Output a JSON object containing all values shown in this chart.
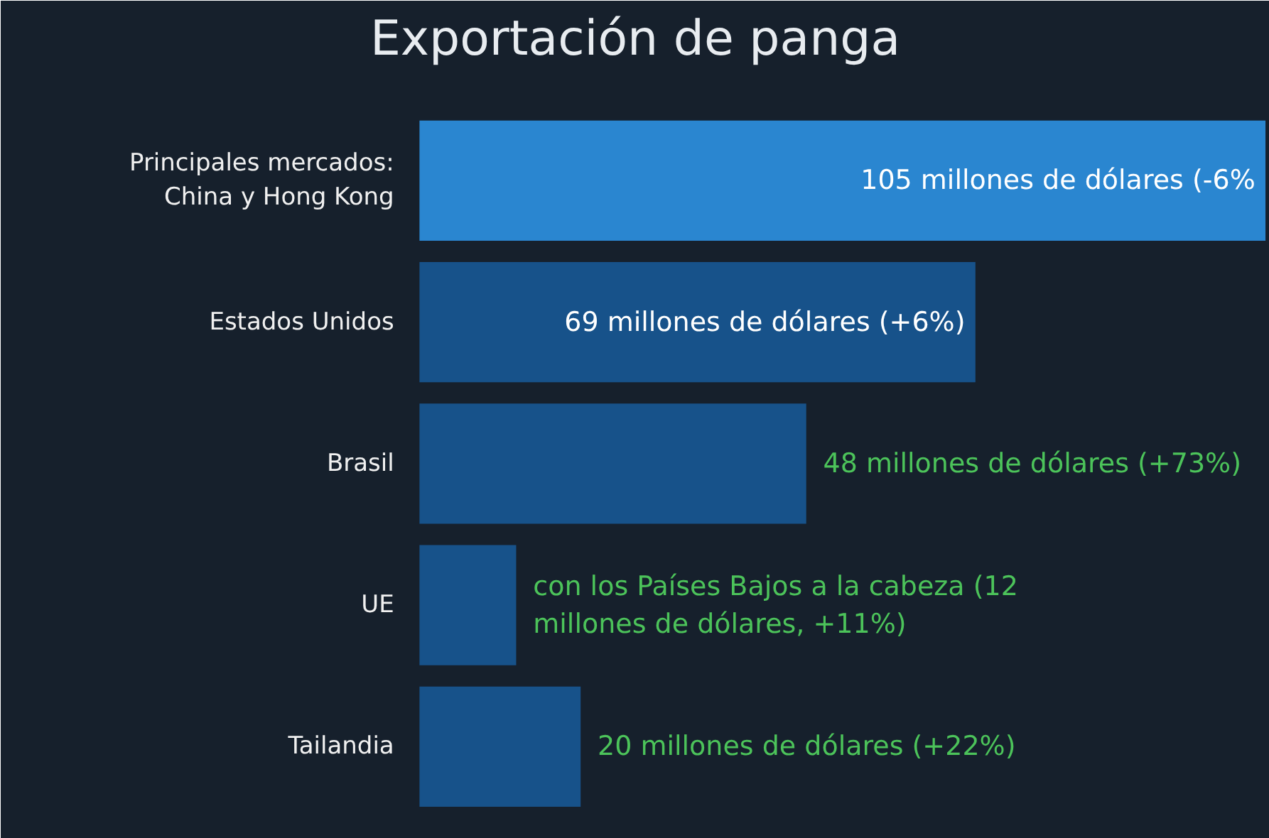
{
  "chart_data": {
    "type": "bar",
    "title": "Exportación de panga",
    "orientation": "horizontal",
    "categories": [
      "Principales mercados: China y Hong Kong",
      "Estados Unidos",
      "Brasil",
      "UE",
      "Tailandia"
    ],
    "values": [
      105,
      69,
      48,
      12,
      20
    ],
    "colors": [
      "#2a86d0",
      "#17528a",
      "#17528a",
      "#17528a",
      "#17528a"
    ],
    "value_labels": [
      "105 millones de dólares (-6%",
      "69 millones de dólares (+6%)",
      "48 millones de dólares (+73%)",
      "con los Países Bajos a la cabeza (12 millones de dólares, +11%)",
      "20 millones de dólares (+22%)"
    ],
    "grid": false
  }
}
